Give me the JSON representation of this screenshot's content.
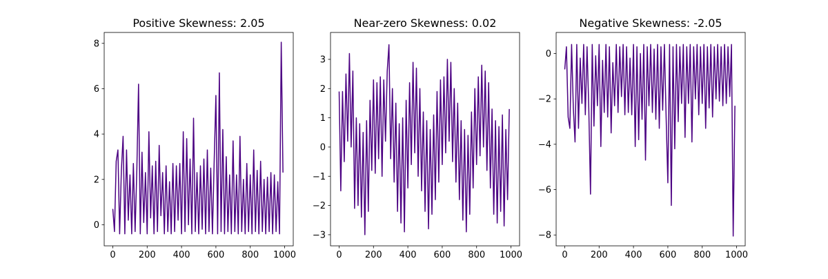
{
  "chart_data": [
    {
      "type": "line",
      "title": "Positive Skewness: 2.05",
      "xlim": [
        -50,
        1050
      ],
      "ylim": [
        -0.93,
        8.48
      ],
      "xticks": [
        0,
        200,
        400,
        600,
        800,
        1000
      ],
      "yticks": [
        0,
        2,
        4,
        6,
        8
      ],
      "grid": false,
      "color": "#4b0082",
      "x": [
        0,
        10,
        20,
        30,
        40,
        50,
        60,
        70,
        80,
        90,
        100,
        110,
        120,
        130,
        140,
        150,
        160,
        170,
        180,
        190,
        200,
        210,
        220,
        230,
        240,
        250,
        260,
        270,
        280,
        290,
        300,
        310,
        320,
        330,
        340,
        350,
        360,
        370,
        380,
        390,
        400,
        410,
        420,
        430,
        440,
        450,
        460,
        470,
        480,
        490,
        500,
        510,
        520,
        530,
        540,
        550,
        560,
        570,
        580,
        590,
        600,
        610,
        620,
        630,
        640,
        650,
        660,
        670,
        680,
        690,
        700,
        710,
        720,
        730,
        740,
        750,
        760,
        770,
        780,
        790,
        800,
        810,
        820,
        830,
        840,
        850,
        860,
        870,
        880,
        890,
        900,
        910,
        920,
        930,
        940,
        950,
        960,
        970,
        980,
        990
      ],
      "values": [
        0.7,
        -0.3,
        2.8,
        3.3,
        -0.4,
        2.4,
        3.9,
        -0.4,
        3.3,
        0.2,
        2.2,
        -0.4,
        2.7,
        -0.3,
        2.4,
        6.2,
        -0.4,
        3.2,
        0.1,
        2.3,
        -0.4,
        4.1,
        0.3,
        2.6,
        -0.4,
        2.8,
        -0.3,
        3.5,
        0.4,
        2.3,
        -0.4,
        2.6,
        -0.3,
        1.9,
        -0.4,
        2.7,
        -0.3,
        2.6,
        0.2,
        2.7,
        -0.4,
        4.1,
        -0.3,
        3.8,
        0.0,
        2.9,
        -0.4,
        4.7,
        -0.3,
        2.3,
        -0.4,
        2.6,
        -0.2,
        2.9,
        -0.4,
        3.3,
        -0.3,
        2.5,
        -0.4,
        2.8,
        5.7,
        -0.4,
        6.7,
        -0.3,
        4.2,
        -0.4,
        3.0,
        -0.3,
        2.2,
        -0.4,
        3.7,
        -0.3,
        2.2,
        -0.4,
        3.9,
        -0.3,
        2.0,
        -0.4,
        2.7,
        -0.3,
        2.2,
        -0.4,
        3.3,
        -0.3,
        2.4,
        -0.4,
        2.8,
        -0.3,
        2.0,
        -0.4,
        2.1,
        -0.3,
        2.3,
        -0.4,
        2.2,
        -0.3,
        1.9,
        -0.4,
        8.05,
        2.3
      ]
    },
    {
      "type": "line",
      "title": "Near-zero Skewness: 0.02",
      "xlim": [
        -50,
        1050
      ],
      "ylim": [
        -3.38,
        3.92
      ],
      "xticks": [
        0,
        200,
        400,
        600,
        800,
        1000
      ],
      "yticks": [
        -3,
        -2,
        -1,
        0,
        1,
        2,
        3
      ],
      "grid": false,
      "color": "#4b0082",
      "x": [
        0,
        10,
        20,
        30,
        40,
        50,
        60,
        70,
        80,
        90,
        100,
        110,
        120,
        130,
        140,
        150,
        160,
        170,
        180,
        190,
        200,
        210,
        220,
        230,
        240,
        250,
        260,
        270,
        280,
        290,
        300,
        310,
        320,
        330,
        340,
        350,
        360,
        370,
        380,
        390,
        400,
        410,
        420,
        430,
        440,
        450,
        460,
        470,
        480,
        490,
        500,
        510,
        520,
        530,
        540,
        550,
        560,
        570,
        580,
        590,
        600,
        610,
        620,
        630,
        640,
        650,
        660,
        670,
        680,
        690,
        700,
        710,
        720,
        730,
        740,
        750,
        760,
        770,
        780,
        790,
        800,
        810,
        820,
        830,
        840,
        850,
        860,
        870,
        880,
        890,
        900,
        910,
        920,
        930,
        940,
        950,
        960,
        970,
        980,
        990
      ],
      "values": [
        1.9,
        -1.5,
        1.9,
        -0.5,
        2.5,
        0.2,
        3.2,
        0.0,
        2.6,
        -2.1,
        1.0,
        -2.0,
        0.8,
        -2.4,
        0.5,
        -3.0,
        0.9,
        -2.2,
        1.6,
        -0.8,
        2.3,
        -0.9,
        2.2,
        -0.4,
        2.4,
        -1.0,
        2.3,
        0.2,
        2.6,
        3.5,
        -0.4,
        2.0,
        -1.2,
        1.5,
        -2.2,
        0.8,
        -2.6,
        1.0,
        -2.9,
        1.6,
        -1.4,
        2.2,
        -0.6,
        2.9,
        -0.2,
        2.7,
        -1.0,
        2.0,
        -1.5,
        1.2,
        -2.2,
        0.9,
        -2.8,
        0.6,
        -2.3,
        1.1,
        -1.8,
        1.9,
        -1.2,
        2.3,
        -0.6,
        2.4,
        -0.2,
        3.0,
        0.2,
        2.9,
        -0.5,
        2.0,
        -1.2,
        1.5,
        -1.8,
        0.9,
        -2.5,
        0.6,
        -2.9,
        0.4,
        -2.3,
        1.2,
        -1.4,
        2.0,
        -0.6,
        2.4,
        -0.3,
        2.8,
        0.0,
        2.6,
        -0.8,
        2.2,
        -1.4,
        1.3,
        -2.3,
        0.9,
        -2.6,
        0.7,
        -2.2,
        1.1,
        -2.7,
        0.6,
        -1.8,
        1.3
      ]
    },
    {
      "type": "line",
      "title": "Negative Skewness: -2.05",
      "xlim": [
        -50,
        1050
      ],
      "ylim": [
        -8.48,
        0.93
      ],
      "xticks": [
        0,
        200,
        400,
        600,
        800,
        1000
      ],
      "yticks": [
        -8,
        -6,
        -4,
        -2,
        0
      ],
      "grid": false,
      "color": "#4b0082",
      "x": [
        0,
        10,
        20,
        30,
        40,
        50,
        60,
        70,
        80,
        90,
        100,
        110,
        120,
        130,
        140,
        150,
        160,
        170,
        180,
        190,
        200,
        210,
        220,
        230,
        240,
        250,
        260,
        270,
        280,
        290,
        300,
        310,
        320,
        330,
        340,
        350,
        360,
        370,
        380,
        390,
        400,
        410,
        420,
        430,
        440,
        450,
        460,
        470,
        480,
        490,
        500,
        510,
        520,
        530,
        540,
        550,
        560,
        570,
        580,
        590,
        600,
        610,
        620,
        630,
        640,
        650,
        660,
        670,
        680,
        690,
        700,
        710,
        720,
        730,
        740,
        750,
        760,
        770,
        780,
        790,
        800,
        810,
        820,
        830,
        840,
        850,
        860,
        870,
        880,
        890,
        900,
        910,
        920,
        930,
        940,
        950,
        960,
        970,
        980,
        990
      ],
      "values": [
        -0.7,
        0.3,
        -2.8,
        -3.3,
        0.4,
        -2.4,
        -3.9,
        0.4,
        -3.3,
        -0.2,
        -2.2,
        0.4,
        -2.7,
        0.3,
        -2.4,
        -6.2,
        0.4,
        -3.2,
        -0.1,
        -2.3,
        0.4,
        -4.1,
        -0.3,
        -2.6,
        0.4,
        -2.8,
        0.3,
        -3.5,
        -0.4,
        -2.3,
        0.4,
        -2.6,
        0.3,
        -1.9,
        0.4,
        -2.7,
        0.3,
        -2.6,
        -0.2,
        -2.7,
        0.4,
        -4.1,
        0.3,
        -3.8,
        0.0,
        -2.9,
        0.4,
        -4.7,
        0.3,
        -2.3,
        0.4,
        -2.6,
        0.2,
        -2.9,
        0.4,
        -3.3,
        0.3,
        -2.5,
        0.4,
        -2.8,
        -5.7,
        0.4,
        -6.7,
        0.3,
        -4.2,
        0.4,
        -3.0,
        0.3,
        -2.2,
        0.4,
        -3.7,
        0.3,
        -2.2,
        0.4,
        -3.9,
        0.3,
        -2.0,
        0.4,
        -2.7,
        0.3,
        -2.2,
        0.4,
        -3.3,
        0.3,
        -2.4,
        0.4,
        -2.8,
        0.3,
        -2.0,
        0.4,
        -2.1,
        0.3,
        -2.3,
        0.4,
        -2.2,
        0.3,
        -1.9,
        0.4,
        -8.05,
        -2.3
      ]
    }
  ]
}
